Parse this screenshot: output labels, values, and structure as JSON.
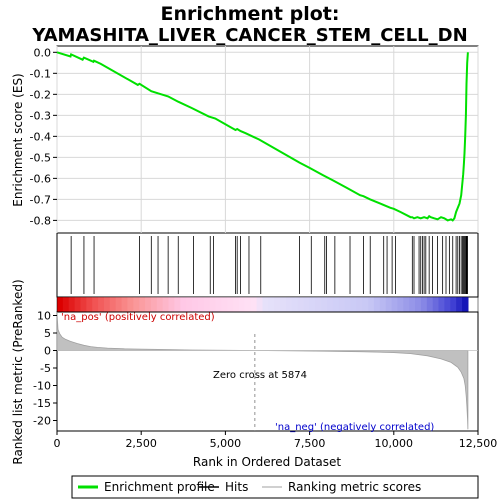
{
  "chart_data": {
    "type": "line",
    "title": "Enrichment plot:",
    "subtitle": "YAMASHITA_LIVER_CANCER_STEM_CELL_DN",
    "xlabel": "Rank in Ordered Dataset",
    "xlim": [
      0,
      12500
    ],
    "x_ticks": [
      0,
      2500,
      5000,
      7500,
      10000,
      12500
    ],
    "x_tick_labels": [
      "0",
      "2,500",
      "5,000",
      "7,500",
      "10,000",
      "12,500"
    ],
    "es_panel": {
      "ylabel": "Enrichment score (ES)",
      "ylim": [
        -0.86,
        0.03
      ],
      "y_ticks": [
        0.0,
        -0.1,
        -0.2,
        -0.3,
        -0.4,
        -0.5,
        -0.6,
        -0.7,
        -0.8
      ],
      "y_tick_labels": [
        "0.0",
        "-0.1",
        "-0.2",
        "-0.3",
        "-0.4",
        "-0.5",
        "-0.6",
        "-0.7",
        "-0.8"
      ],
      "grid": true,
      "series": [
        {
          "name": "Enrichment profile",
          "color": "#00e000",
          "x": [
            0,
            400,
            420,
            760,
            800,
            1080,
            1100,
            1300,
            2400,
            2450,
            2800,
            3000,
            3300,
            3600,
            4000,
            4500,
            4700,
            5300,
            5350,
            5450,
            5600,
            6000,
            7200,
            7500,
            7900,
            8200,
            8600,
            9000,
            9100,
            9300,
            9600,
            9900,
            10000,
            10200,
            10500,
            10550,
            10600,
            10700,
            10800,
            10900,
            11000,
            11050,
            11100,
            11200,
            11300,
            11400,
            11500,
            11600,
            11700,
            11750,
            11800,
            11850,
            11900,
            11950,
            12000,
            12030,
            12060,
            12080,
            12100,
            12120,
            12140,
            12160,
            12180,
            12200
          ],
          "y": [
            0.0,
            -0.02,
            -0.01,
            -0.035,
            -0.025,
            -0.045,
            -0.04,
            -0.055,
            -0.155,
            -0.15,
            -0.185,
            -0.195,
            -0.21,
            -0.235,
            -0.265,
            -0.305,
            -0.315,
            -0.37,
            -0.365,
            -0.375,
            -0.385,
            -0.415,
            -0.525,
            -0.55,
            -0.585,
            -0.61,
            -0.645,
            -0.68,
            -0.685,
            -0.7,
            -0.72,
            -0.74,
            -0.745,
            -0.76,
            -0.785,
            -0.785,
            -0.79,
            -0.785,
            -0.79,
            -0.785,
            -0.79,
            -0.78,
            -0.785,
            -0.79,
            -0.795,
            -0.785,
            -0.79,
            -0.8,
            -0.795,
            -0.8,
            -0.79,
            -0.76,
            -0.74,
            -0.72,
            -0.68,
            -0.63,
            -0.58,
            -0.53,
            -0.48,
            -0.4,
            -0.3,
            -0.15,
            -0.05,
            0.0
          ]
        }
      ]
    },
    "hits": {
      "name": "Hits",
      "color": "#000000",
      "x": [
        420,
        800,
        1100,
        2450,
        2800,
        3000,
        3300,
        3600,
        4050,
        4550,
        4650,
        5300,
        5350,
        5450,
        5700,
        6050,
        7200,
        7550,
        7950,
        8000,
        8250,
        8700,
        9100,
        9300,
        9700,
        9800,
        9950,
        10050,
        10550,
        10600,
        10750,
        10800,
        10850,
        10900,
        10950,
        11050,
        11150,
        11300,
        11450,
        11550,
        11650,
        11750,
        11850,
        11900,
        11950,
        12000,
        12040,
        12070,
        12100,
        12130,
        12150,
        12170,
        12190
      ]
    },
    "ranked_metric": {
      "name": "Ranking metric scores",
      "color": "#c0c0c0",
      "ylabel": "Ranked list metric (PreRanked)",
      "ylim": [
        -23,
        11
      ],
      "y_ticks": [
        10,
        5,
        0,
        -5,
        -10,
        -15,
        -20
      ],
      "y_tick_labels": [
        "10",
        "5",
        "0",
        "-5",
        "-10",
        "-15",
        "-20"
      ],
      "x": [
        0,
        30,
        80,
        150,
        250,
        400,
        600,
        800,
        1000,
        1200,
        1500,
        2000,
        2500,
        3000,
        4000,
        5000,
        5874,
        7000,
        8000,
        9000,
        10000,
        10500,
        11000,
        11400,
        11700,
        11900,
        12000,
        12080,
        12120,
        12150,
        12170,
        12190,
        12200
      ],
      "y": [
        11,
        6,
        4.8,
        3.8,
        3.2,
        2.6,
        2.0,
        1.5,
        1.1,
        0.9,
        0.7,
        0.5,
        0.4,
        0.3,
        0.15,
        0.05,
        0.0,
        -0.1,
        -0.2,
        -0.35,
        -0.6,
        -0.9,
        -1.5,
        -2.4,
        -3.4,
        -4.8,
        -6.2,
        -8.0,
        -10.0,
        -13.0,
        -16.0,
        -20.0,
        -22.5
      ],
      "zero_cross_text": "Zero cross at 5874",
      "zero_cross_x": 5874,
      "pos_label": "'na_pos' (positively correlated)",
      "neg_label": "'na_neg' (negatively correlated)",
      "pos_color": "#cc0000",
      "neg_color": "#0000cc"
    },
    "legend": {
      "placement": "bottom",
      "items": [
        {
          "label": "Enrichment profile",
          "color": "#00e000"
        },
        {
          "label": "Hits",
          "color": "#000000"
        },
        {
          "label": "Ranking metric scores",
          "color": "#c0c0c0"
        }
      ]
    }
  }
}
